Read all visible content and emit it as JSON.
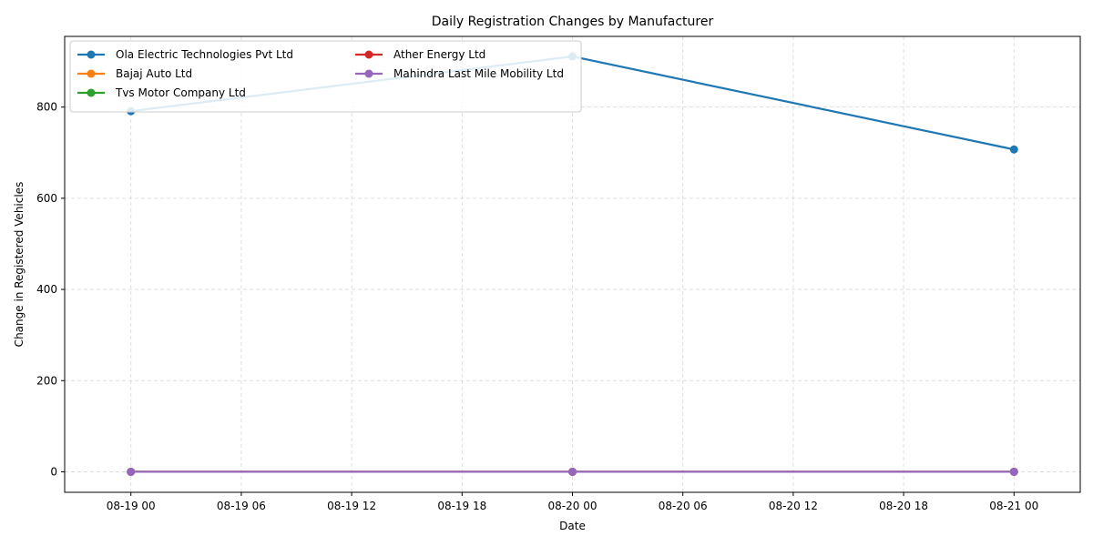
{
  "chart_data": {
    "type": "line",
    "title": "Daily Registration Changes by Manufacturer",
    "xlabel": "Date",
    "ylabel": "Change in Registered Vehicles",
    "x": [
      "2024-08-19",
      "2024-08-20",
      "2024-08-21"
    ],
    "x_tick_labels": [
      "08-19 00",
      "08-19 06",
      "08-19 12",
      "08-19 18",
      "08-20 00",
      "08-20 06",
      "08-20 12",
      "08-20 18",
      "08-21 00"
    ],
    "xlim": [
      "2024-08-18 20:24",
      "2024-08-21 03:36"
    ],
    "y_ticks": [
      0,
      200,
      400,
      600,
      800
    ],
    "ylim": [
      -45,
      955
    ],
    "grid": true,
    "legend_position": "top-left",
    "legend_columns": 2,
    "series": [
      {
        "name": "Ola Electric Technologies Pvt Ltd",
        "color": "#1f77b4",
        "values": [
          791,
          911,
          707
        ]
      },
      {
        "name": "Bajaj Auto Ltd",
        "color": "#ff7f0e",
        "values": [
          0,
          0,
          0
        ]
      },
      {
        "name": "Tvs Motor Company Ltd",
        "color": "#2ca02c",
        "values": [
          0,
          0,
          0
        ]
      },
      {
        "name": "Ather Energy Ltd",
        "color": "#d62728",
        "values": [
          0,
          0,
          0
        ]
      },
      {
        "name": "Mahindra Last Mile Mobility Ltd",
        "color": "#9467bd",
        "values": [
          0,
          0,
          0
        ]
      }
    ]
  }
}
